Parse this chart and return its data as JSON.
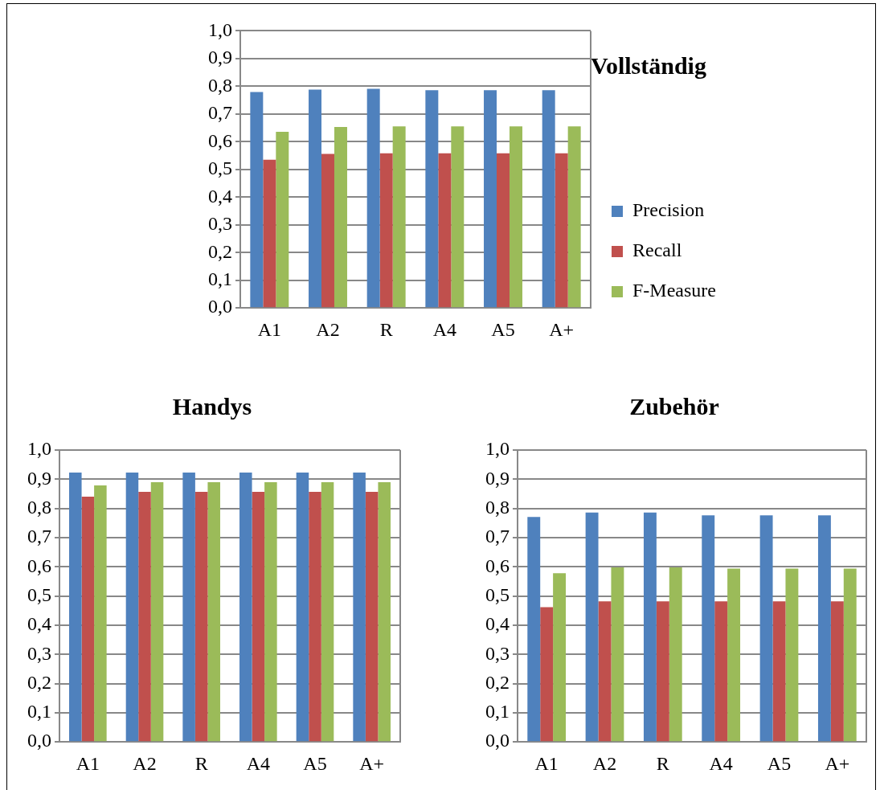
{
  "chart_data": [
    {
      "type": "bar",
      "title": "Vollständig",
      "categories": [
        "A1",
        "A2",
        "R",
        "A4",
        "A5",
        "A+"
      ],
      "series": [
        {
          "name": "Precision",
          "color": "#4f81bd",
          "values": [
            0.779,
            0.788,
            0.791,
            0.786,
            0.786,
            0.786
          ]
        },
        {
          "name": "Recall",
          "color": "#c0504d",
          "values": [
            0.535,
            0.556,
            0.558,
            0.558,
            0.558,
            0.558
          ]
        },
        {
          "name": "F-Measure",
          "color": "#9bbb59",
          "values": [
            0.636,
            0.653,
            0.655,
            0.655,
            0.655,
            0.655
          ]
        }
      ],
      "ylim": [
        0,
        1
      ],
      "yticks": [
        {
          "value": 0,
          "label": "0,0"
        },
        {
          "value": 0.1,
          "label": "0,1"
        },
        {
          "value": 0.2,
          "label": "0,2"
        },
        {
          "value": 0.3,
          "label": "0,3"
        },
        {
          "value": 0.4,
          "label": "0,4"
        },
        {
          "value": 0.5,
          "label": "0,5"
        },
        {
          "value": 0.6,
          "label": "0,6"
        },
        {
          "value": 0.7,
          "label": "0,7"
        },
        {
          "value": 0.8,
          "label": "0,8"
        },
        {
          "value": 0.9,
          "label": "0,9"
        },
        {
          "value": 1,
          "label": "1,0"
        }
      ],
      "grid": "y",
      "legend": "right"
    },
    {
      "type": "bar",
      "title": "Handys",
      "categories": [
        "A1",
        "A2",
        "R",
        "A4",
        "A5",
        "A+"
      ],
      "series": [
        {
          "color": "#4f81bd",
          "values": [
            0.923,
            0.923,
            0.923,
            0.923,
            0.923,
            0.923
          ]
        },
        {
          "color": "#c0504d",
          "values": [
            0.84,
            0.857,
            0.857,
            0.857,
            0.857,
            0.857
          ]
        },
        {
          "color": "#9bbb59",
          "values": [
            0.879,
            0.89,
            0.89,
            0.89,
            0.89,
            0.89
          ]
        }
      ],
      "ylim": [
        0,
        1
      ],
      "yticks": [
        {
          "value": 0,
          "label": "0,0"
        },
        {
          "value": 0.1,
          "label": "0,1"
        },
        {
          "value": 0.2,
          "label": "0,2"
        },
        {
          "value": 0.3,
          "label": "0,3"
        },
        {
          "value": 0.4,
          "label": "0,4"
        },
        {
          "value": 0.5,
          "label": "0,5"
        },
        {
          "value": 0.6,
          "label": "0,6"
        },
        {
          "value": 0.7,
          "label": "0,7"
        },
        {
          "value": 0.8,
          "label": "0,8"
        },
        {
          "value": 0.9,
          "label": "0,9"
        },
        {
          "value": 1,
          "label": "1,0"
        }
      ],
      "grid": "y"
    },
    {
      "type": "bar",
      "title": "Zubehör",
      "categories": [
        "A1",
        "A2",
        "R",
        "A4",
        "A5",
        "A+"
      ],
      "series": [
        {
          "color": "#4f81bd",
          "values": [
            0.771,
            0.786,
            0.786,
            0.776,
            0.776,
            0.776
          ]
        },
        {
          "color": "#c0504d",
          "values": [
            0.462,
            0.482,
            0.482,
            0.482,
            0.482,
            0.482
          ]
        },
        {
          "color": "#9bbb59",
          "values": [
            0.578,
            0.598,
            0.598,
            0.594,
            0.594,
            0.594
          ]
        }
      ],
      "ylim": [
        0,
        1
      ],
      "yticks": [
        {
          "value": 0,
          "label": "0,0"
        },
        {
          "value": 0.1,
          "label": "0,1"
        },
        {
          "value": 0.2,
          "label": "0,2"
        },
        {
          "value": 0.3,
          "label": "0,3"
        },
        {
          "value": 0.4,
          "label": "0,4"
        },
        {
          "value": 0.5,
          "label": "0,5"
        },
        {
          "value": 0.6,
          "label": "0,6"
        },
        {
          "value": 0.7,
          "label": "0,7"
        },
        {
          "value": 0.8,
          "label": "0,8"
        },
        {
          "value": 0.9,
          "label": "0,9"
        },
        {
          "value": 1,
          "label": "1,0"
        }
      ],
      "grid": "y"
    }
  ]
}
